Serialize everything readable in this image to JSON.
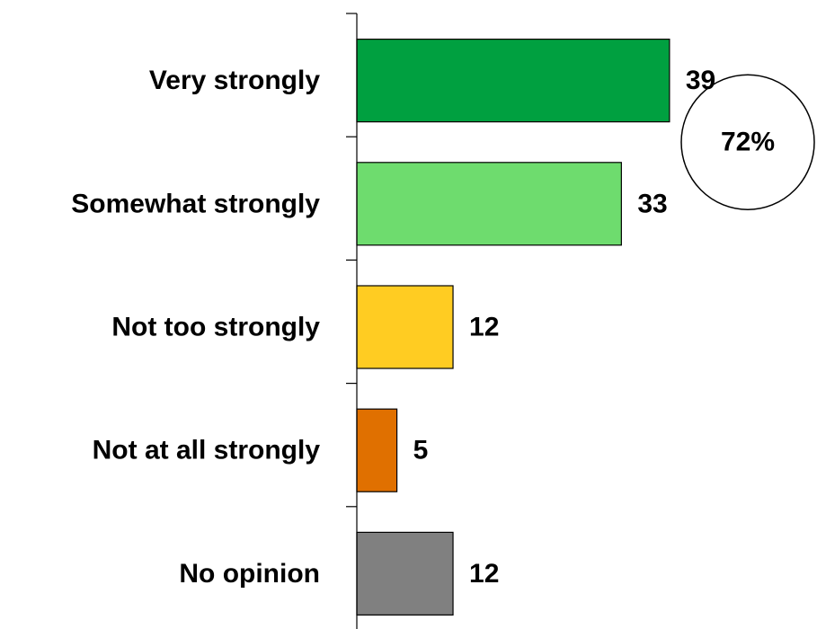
{
  "chart_data": {
    "type": "bar",
    "orientation": "horizontal",
    "categories": [
      "Very strongly",
      "Somewhat strongly",
      "Not too strongly",
      "Not at all strongly",
      "No opinion"
    ],
    "values": [
      39,
      33,
      12,
      5,
      12
    ],
    "colors": [
      "#00A040",
      "#6EDC6E",
      "#FFCC22",
      "#E07000",
      "#808080"
    ],
    "xlim": [
      0,
      50
    ],
    "grid": false,
    "legend": "none",
    "callout": {
      "label": "72%",
      "spans_categories": [
        "Very strongly",
        "Somewhat strongly"
      ]
    }
  }
}
